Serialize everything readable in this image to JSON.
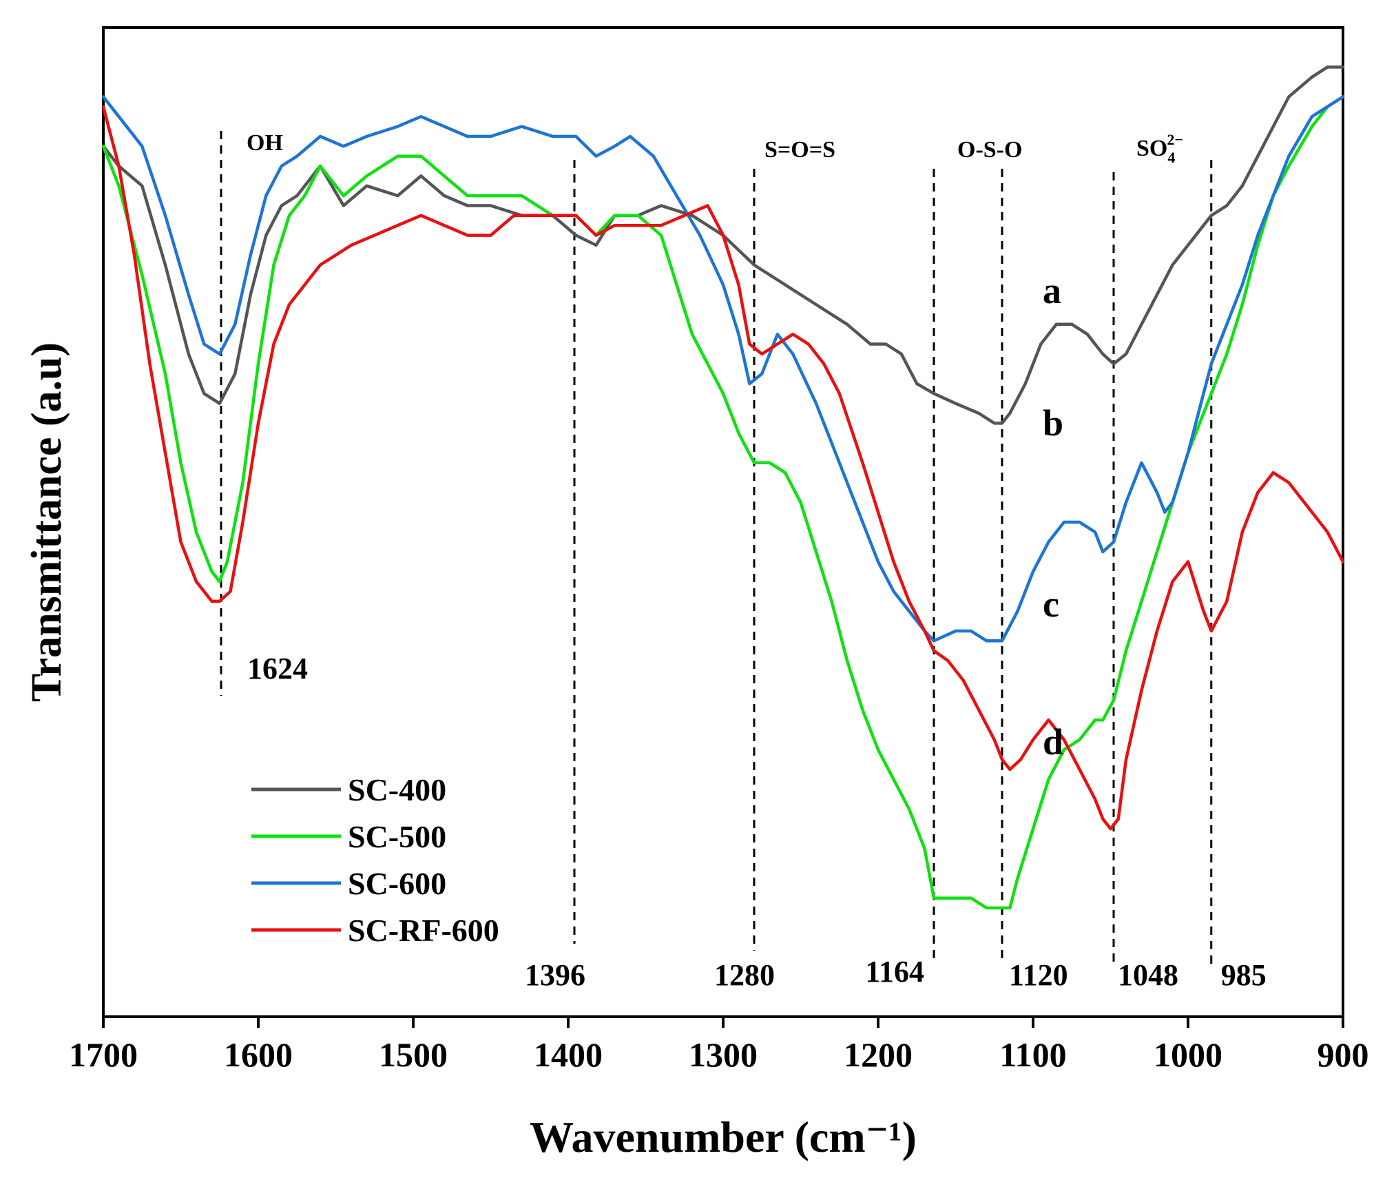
{
  "chart_data": {
    "type": "line",
    "title": "",
    "xlabel": "Wavenumber (cm⁻¹)",
    "ylabel": "Transmittance (a.u)",
    "xlim": [
      1700,
      900
    ],
    "ylim": [
      0,
      1
    ],
    "x_reversed": true,
    "grid": false,
    "legend_position": "bottom-left",
    "x_ticks": [
      1700,
      1600,
      1500,
      1400,
      1300,
      1200,
      1100,
      1000,
      900
    ],
    "y_ticks": [],
    "series": [
      {
        "name": "SC-400",
        "label": "a",
        "color": "#555555",
        "x": [
          1700,
          1690,
          1675,
          1660,
          1645,
          1635,
          1625,
          1615,
          1605,
          1595,
          1585,
          1575,
          1560,
          1545,
          1530,
          1510,
          1495,
          1480,
          1465,
          1450,
          1430,
          1410,
          1395,
          1382,
          1370,
          1355,
          1340,
          1320,
          1300,
          1280,
          1260,
          1240,
          1220,
          1205,
          1195,
          1185,
          1175,
          1164,
          1150,
          1135,
          1125,
          1120,
          1115,
          1105,
          1095,
          1085,
          1075,
          1065,
          1055,
          1048,
          1040,
          1030,
          1020,
          1010,
          1000,
          990,
          985,
          975,
          965,
          955,
          945,
          935,
          920,
          910,
          900
        ],
        "y": [
          0.88,
          0.86,
          0.84,
          0.76,
          0.67,
          0.63,
          0.62,
          0.65,
          0.73,
          0.79,
          0.82,
          0.83,
          0.86,
          0.82,
          0.84,
          0.83,
          0.85,
          0.83,
          0.82,
          0.82,
          0.81,
          0.81,
          0.79,
          0.78,
          0.81,
          0.81,
          0.82,
          0.81,
          0.79,
          0.76,
          0.74,
          0.72,
          0.7,
          0.68,
          0.68,
          0.67,
          0.64,
          0.63,
          0.62,
          0.61,
          0.6,
          0.6,
          0.61,
          0.64,
          0.68,
          0.7,
          0.7,
          0.69,
          0.67,
          0.66,
          0.67,
          0.7,
          0.73,
          0.76,
          0.78,
          0.8,
          0.81,
          0.82,
          0.84,
          0.87,
          0.9,
          0.93,
          0.95,
          0.96,
          0.96
        ]
      },
      {
        "name": "SC-500",
        "label": "d",
        "color": "#11e011",
        "x": [
          1700,
          1690,
          1675,
          1660,
          1650,
          1640,
          1630,
          1625,
          1620,
          1610,
          1600,
          1590,
          1580,
          1570,
          1560,
          1545,
          1530,
          1510,
          1495,
          1480,
          1465,
          1450,
          1430,
          1410,
          1395,
          1382,
          1370,
          1355,
          1340,
          1330,
          1320,
          1310,
          1300,
          1290,
          1280,
          1270,
          1260,
          1250,
          1240,
          1230,
          1220,
          1210,
          1200,
          1190,
          1180,
          1170,
          1164,
          1150,
          1140,
          1130,
          1120,
          1115,
          1110,
          1100,
          1090,
          1080,
          1070,
          1060,
          1055,
          1048,
          1040,
          1030,
          1020,
          1010,
          1000,
          990,
          985,
          975,
          965,
          955,
          945,
          935,
          920,
          910,
          900
        ],
        "y": [
          0.88,
          0.84,
          0.75,
          0.65,
          0.56,
          0.49,
          0.45,
          0.44,
          0.46,
          0.54,
          0.66,
          0.76,
          0.81,
          0.83,
          0.86,
          0.83,
          0.85,
          0.87,
          0.87,
          0.85,
          0.83,
          0.83,
          0.83,
          0.81,
          0.81,
          0.79,
          0.81,
          0.81,
          0.79,
          0.74,
          0.69,
          0.66,
          0.63,
          0.59,
          0.56,
          0.56,
          0.55,
          0.52,
          0.47,
          0.42,
          0.36,
          0.31,
          0.27,
          0.24,
          0.21,
          0.17,
          0.12,
          0.12,
          0.12,
          0.11,
          0.11,
          0.11,
          0.14,
          0.19,
          0.24,
          0.27,
          0.28,
          0.3,
          0.3,
          0.32,
          0.37,
          0.42,
          0.47,
          0.52,
          0.57,
          0.61,
          0.63,
          0.67,
          0.72,
          0.78,
          0.83,
          0.86,
          0.9,
          0.92,
          0.93
        ]
      },
      {
        "name": "SC-600",
        "label": "b",
        "color": "#1e74d6",
        "x": [
          1700,
          1690,
          1675,
          1660,
          1645,
          1635,
          1625,
          1615,
          1605,
          1595,
          1585,
          1575,
          1560,
          1545,
          1530,
          1510,
          1495,
          1480,
          1465,
          1450,
          1430,
          1410,
          1395,
          1382,
          1370,
          1360,
          1345,
          1330,
          1315,
          1300,
          1290,
          1283,
          1275,
          1265,
          1255,
          1240,
          1225,
          1210,
          1200,
          1190,
          1180,
          1170,
          1164,
          1150,
          1140,
          1130,
          1120,
          1110,
          1100,
          1090,
          1080,
          1070,
          1060,
          1055,
          1048,
          1040,
          1030,
          1020,
          1015,
          1010,
          1000,
          990,
          985,
          975,
          965,
          955,
          945,
          935,
          920,
          910,
          900
        ],
        "y": [
          0.93,
          0.91,
          0.88,
          0.81,
          0.73,
          0.68,
          0.67,
          0.7,
          0.77,
          0.83,
          0.86,
          0.87,
          0.89,
          0.88,
          0.89,
          0.9,
          0.91,
          0.9,
          0.89,
          0.89,
          0.9,
          0.89,
          0.89,
          0.87,
          0.88,
          0.89,
          0.87,
          0.83,
          0.79,
          0.74,
          0.69,
          0.64,
          0.65,
          0.69,
          0.67,
          0.62,
          0.56,
          0.5,
          0.46,
          0.43,
          0.41,
          0.39,
          0.38,
          0.39,
          0.39,
          0.38,
          0.38,
          0.41,
          0.45,
          0.48,
          0.5,
          0.5,
          0.49,
          0.47,
          0.48,
          0.52,
          0.56,
          0.53,
          0.51,
          0.52,
          0.57,
          0.63,
          0.66,
          0.7,
          0.74,
          0.79,
          0.83,
          0.87,
          0.91,
          0.92,
          0.93
        ]
      },
      {
        "name": "SC-RF-600",
        "label": "c",
        "color": "#e81010",
        "x": [
          1700,
          1690,
          1680,
          1670,
          1660,
          1650,
          1640,
          1630,
          1625,
          1618,
          1610,
          1600,
          1590,
          1580,
          1570,
          1560,
          1550,
          1540,
          1525,
          1510,
          1495,
          1480,
          1465,
          1450,
          1435,
          1420,
          1405,
          1395,
          1382,
          1370,
          1355,
          1340,
          1325,
          1310,
          1300,
          1290,
          1283,
          1275,
          1265,
          1255,
          1245,
          1235,
          1225,
          1210,
          1200,
          1190,
          1180,
          1170,
          1164,
          1155,
          1145,
          1135,
          1125,
          1120,
          1115,
          1108,
          1100,
          1090,
          1080,
          1070,
          1060,
          1055,
          1050,
          1045,
          1040,
          1030,
          1020,
          1010,
          1000,
          990,
          985,
          975,
          965,
          955,
          945,
          935,
          920,
          910,
          900
        ],
        "y": [
          0.92,
          0.86,
          0.77,
          0.66,
          0.57,
          0.48,
          0.44,
          0.42,
          0.42,
          0.43,
          0.5,
          0.6,
          0.68,
          0.72,
          0.74,
          0.76,
          0.77,
          0.78,
          0.79,
          0.8,
          0.81,
          0.8,
          0.79,
          0.79,
          0.81,
          0.81,
          0.81,
          0.81,
          0.79,
          0.8,
          0.8,
          0.8,
          0.81,
          0.82,
          0.79,
          0.74,
          0.68,
          0.67,
          0.68,
          0.69,
          0.68,
          0.66,
          0.63,
          0.56,
          0.51,
          0.46,
          0.42,
          0.39,
          0.37,
          0.36,
          0.34,
          0.31,
          0.28,
          0.26,
          0.25,
          0.26,
          0.28,
          0.3,
          0.28,
          0.25,
          0.22,
          0.2,
          0.19,
          0.2,
          0.26,
          0.33,
          0.39,
          0.44,
          0.46,
          0.41,
          0.39,
          0.42,
          0.49,
          0.53,
          0.55,
          0.54,
          0.51,
          0.49,
          0.46
        ]
      }
    ],
    "reference_lines": [
      {
        "x": 1624,
        "label": "1624",
        "label_top": "OH"
      },
      {
        "x": 1396,
        "label": "1396",
        "label_top": ""
      },
      {
        "x": 1280,
        "label": "1280",
        "label_top": "S=O=S"
      },
      {
        "x": 1164,
        "label": "1164",
        "label_top": ""
      },
      {
        "x": 1120,
        "label": "1120",
        "label_top": "O-S-O"
      },
      {
        "x": 1048,
        "label": "1048",
        "label_top": ""
      },
      {
        "x": 985,
        "label": "985",
        "label_top": ""
      }
    ],
    "group_labels": {
      "oh": "OH",
      "s_o_s": "S=O=S",
      "o_s_o": "O-S-O",
      "sulfate_main": "SO",
      "sulfate_sub": "4",
      "sulfate_sup": "2−"
    },
    "curve_labels": [
      "a",
      "b",
      "c",
      "d"
    ]
  }
}
